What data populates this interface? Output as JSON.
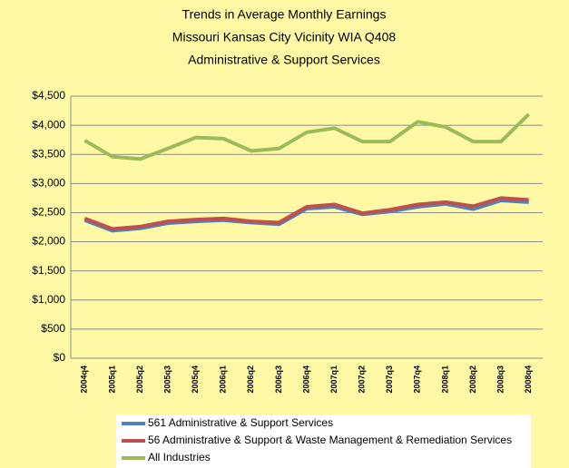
{
  "chart_data": {
    "type": "line",
    "title": "Trends in Average Monthly Earnings",
    "subtitle": [
      "Missouri Kansas City Vicinity WIA Q408",
      "Administrative & Support Services"
    ],
    "categories": [
      "2004q4",
      "2005q1",
      "2005q2",
      "2005q3",
      "2005q4",
      "2006q1",
      "2006q2",
      "2006q3",
      "2006q4",
      "2007q1",
      "2007q2",
      "2007q3",
      "2007q4",
      "2008q1",
      "2008q2",
      "2008q3",
      "2008q4"
    ],
    "series": [
      {
        "name": "561 Administrative & Support Services",
        "color": "#4f81bd",
        "values": [
          2370,
          2190,
          2230,
          2320,
          2350,
          2370,
          2330,
          2300,
          2570,
          2600,
          2470,
          2520,
          2600,
          2650,
          2560,
          2710,
          2680
        ]
      },
      {
        "name": "56 Administrative & Support & Waste Management & Remediation Services",
        "color": "#c0504d",
        "values": [
          2400,
          2220,
          2260,
          2350,
          2380,
          2400,
          2350,
          2330,
          2600,
          2640,
          2490,
          2550,
          2640,
          2680,
          2610,
          2750,
          2720
        ]
      },
      {
        "name": "All Industries",
        "color": "#9bbb59",
        "values": [
          3740,
          3460,
          3420,
          3600,
          3790,
          3770,
          3560,
          3600,
          3880,
          3950,
          3720,
          3720,
          4060,
          3970,
          3720,
          3720,
          4190
        ]
      }
    ],
    "ylim": [
      0,
      4500
    ],
    "yticks": [
      {
        "value": 0,
        "label": "$0"
      },
      {
        "value": 500,
        "label": "$500"
      },
      {
        "value": 1000,
        "label": "$1,000"
      },
      {
        "value": 1500,
        "label": "$1,500"
      },
      {
        "value": 2000,
        "label": "$2,000"
      },
      {
        "value": 2500,
        "label": "$2,500"
      },
      {
        "value": 3000,
        "label": "$3,000"
      },
      {
        "value": 3500,
        "label": "$3,500"
      },
      {
        "value": 4000,
        "label": "$4,000"
      },
      {
        "value": 4500,
        "label": "$4,500"
      }
    ],
    "grid": true,
    "legend": "bottom",
    "background": "#fff9a6"
  }
}
